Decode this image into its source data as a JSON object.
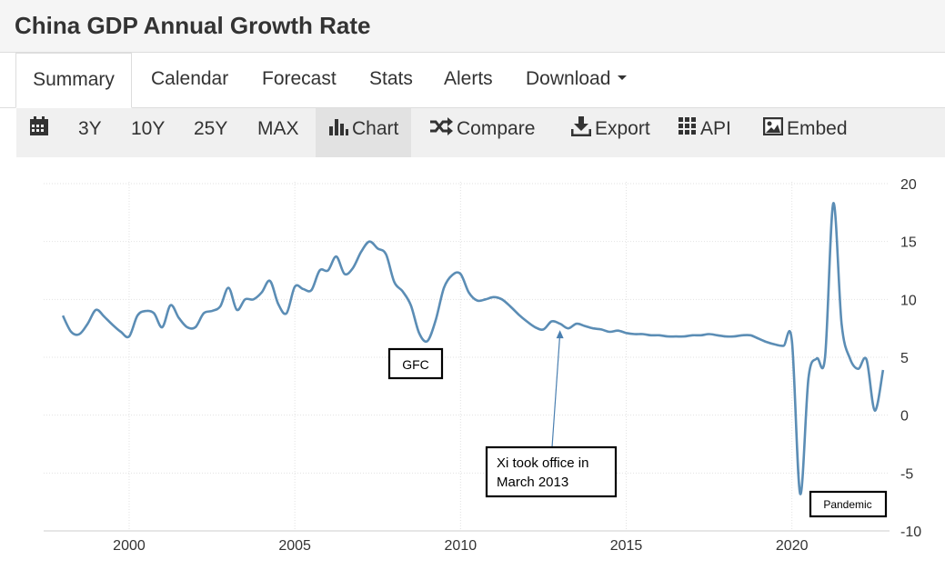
{
  "header": {
    "title": "China GDP Annual Growth Rate"
  },
  "tabs": [
    {
      "label": "Summary",
      "active": true
    },
    {
      "label": "Calendar"
    },
    {
      "label": "Forecast"
    },
    {
      "label": "Stats"
    },
    {
      "label": "Alerts"
    },
    {
      "label": "Download"
    }
  ],
  "toolbar": {
    "calendar_icon": "calendar-icon",
    "ranges": [
      "3Y",
      "10Y",
      "25Y",
      "MAX"
    ],
    "chart_label": "Chart",
    "compare_label": "Compare",
    "export_label": "Export",
    "api_label": "API",
    "embed_label": "Embed"
  },
  "colors": {
    "line": "#5b8db5",
    "grid": "#e2e2e2",
    "toolbar_bg": "#f0f0f0",
    "title_bar_bg": "#f5f5f5"
  },
  "chart_data": {
    "type": "line",
    "title": "",
    "xlabel": "",
    "ylabel": "",
    "x_ticks": [
      2000,
      2005,
      2010,
      2015,
      2020
    ],
    "y_ticks": [
      20,
      15,
      10,
      5,
      0,
      -5,
      -10
    ],
    "xlim": [
      1997.75,
      2023.0
    ],
    "ylim": [
      -10,
      20
    ],
    "grid": "horizontal",
    "y_axis_side": "right",
    "series": [
      {
        "x": [
          1998.0,
          1998.25,
          1998.5,
          1998.75,
          1999.0,
          1999.25,
          1999.5,
          1999.75,
          2000.0,
          2000.25,
          2000.5,
          2000.75,
          2001.0,
          2001.25,
          2001.5,
          2001.75,
          2002.0,
          2002.25,
          2002.5,
          2002.75,
          2003.0,
          2003.25,
          2003.5,
          2003.75,
          2004.0,
          2004.25,
          2004.5,
          2004.75,
          2005.0,
          2005.25,
          2005.5,
          2005.75,
          2006.0,
          2006.25,
          2006.5,
          2006.75,
          2007.0,
          2007.25,
          2007.5,
          2007.75,
          2008.0,
          2008.25,
          2008.5,
          2008.75,
          2009.0,
          2009.25,
          2009.5,
          2009.75,
          2010.0,
          2010.25,
          2010.5,
          2010.75,
          2011.0,
          2011.25,
          2011.5,
          2011.75,
          2012.0,
          2012.25,
          2012.5,
          2012.75,
          2013.0,
          2013.25,
          2013.5,
          2013.75,
          2014.0,
          2014.25,
          2014.5,
          2014.75,
          2015.0,
          2015.25,
          2015.5,
          2015.75,
          2016.0,
          2016.25,
          2016.5,
          2016.75,
          2017.0,
          2017.25,
          2017.5,
          2017.75,
          2018.0,
          2018.25,
          2018.5,
          2018.75,
          2019.0,
          2019.25,
          2019.5,
          2019.75,
          2020.0,
          2020.25,
          2020.5,
          2020.75,
          2021.0,
          2021.25,
          2021.5,
          2021.75,
          2022.0,
          2022.25,
          2022.5,
          2022.75
        ],
        "values": [
          8.6,
          7.2,
          7.0,
          7.9,
          9.1,
          8.5,
          7.8,
          7.2,
          6.8,
          8.6,
          9.0,
          8.8,
          7.6,
          9.5,
          8.4,
          7.6,
          7.6,
          8.8,
          9.0,
          9.4,
          11.0,
          9.1,
          10.0,
          10.0,
          10.6,
          11.6,
          9.6,
          8.8,
          11.1,
          10.9,
          10.8,
          12.5,
          12.5,
          13.7,
          12.2,
          12.7,
          14.1,
          15.0,
          14.4,
          13.9,
          11.5,
          10.7,
          9.5,
          7.1,
          6.4,
          8.2,
          11.0,
          12.1,
          12.2,
          10.6,
          9.9,
          10.0,
          10.2,
          10.0,
          9.4,
          8.7,
          8.1,
          7.6,
          7.4,
          8.1,
          7.9,
          7.5,
          7.9,
          7.7,
          7.5,
          7.4,
          7.2,
          7.3,
          7.1,
          7.0,
          7.0,
          6.9,
          6.9,
          6.8,
          6.8,
          6.8,
          6.9,
          6.9,
          7.0,
          6.9,
          6.8,
          6.8,
          6.9,
          6.9,
          6.6,
          6.3,
          6.1,
          6.0,
          6.4,
          -6.8,
          3.2,
          4.9,
          5.0,
          18.3,
          7.9,
          4.9,
          4.0,
          4.8,
          0.4,
          3.9
        ]
      }
    ],
    "annotations": [
      {
        "text": "GFC",
        "x": 2009.2,
        "y": 6.4
      },
      {
        "text": "Xi took office in",
        "text2": "March 2013",
        "x": 2013.0,
        "y": 7.5
      },
      {
        "text": "Pandemic",
        "x": 2020.25,
        "y": -6.8
      }
    ]
  }
}
